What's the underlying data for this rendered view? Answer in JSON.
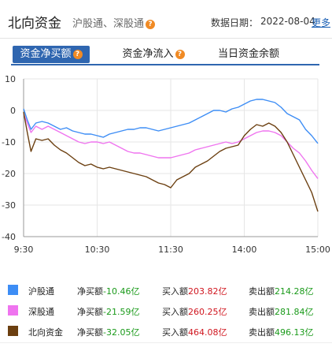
{
  "header": {
    "title": "北向资金",
    "subtitle": "沪股通、深股通",
    "date_label": "数据日期：",
    "date_value": "2022-08-04",
    "more_label": "更多"
  },
  "tabs": [
    {
      "label": "资金净买额",
      "active": true
    },
    {
      "label": "资金净流入",
      "active": false
    },
    {
      "label": "当日资金余额",
      "active": false
    }
  ],
  "colors": {
    "shanghai": "#3d8df5",
    "shenzhen": "#ef74ef",
    "north": "#6b3f10",
    "tab_active": "#2f66b0",
    "positive": "#d0161f",
    "negative": "#1a9a1a"
  },
  "legend": [
    {
      "name": "沪股通",
      "net_label": "净买额",
      "net_value": "-10.46亿",
      "buy_label": "买入额",
      "buy_value": "203.82亿",
      "sell_label": "卖出额",
      "sell_value": "214.28亿"
    },
    {
      "name": "深股通",
      "net_label": "净买额",
      "net_value": "-21.59亿",
      "buy_label": "买入额",
      "buy_value": "260.25亿",
      "sell_label": "卖出额",
      "sell_value": "281.84亿"
    },
    {
      "name": "北向资金",
      "net_label": "净买额",
      "net_value": "-32.05亿",
      "buy_label": "买入额",
      "buy_value": "464.08亿",
      "sell_label": "卖出额",
      "sell_value": "496.13亿"
    }
  ],
  "chart_data": {
    "type": "line",
    "x_ticks": [
      "9:30",
      "10:30",
      "11:30",
      "14:00",
      "15:00"
    ],
    "y_ticks": [
      10,
      0,
      -10,
      -20,
      -30,
      -40
    ],
    "ylim": [
      -40,
      10
    ],
    "x_range_minutes": [
      0,
      240
    ],
    "grid": true,
    "series": [
      {
        "name": "沪股通",
        "color_key": "shanghai",
        "points": [
          [
            0,
            0.5
          ],
          [
            3,
            -3
          ],
          [
            6,
            -6
          ],
          [
            10,
            -4
          ],
          [
            15,
            -3.5
          ],
          [
            20,
            -4
          ],
          [
            25,
            -5
          ],
          [
            30,
            -6
          ],
          [
            35,
            -5.5
          ],
          [
            40,
            -6.5
          ],
          [
            45,
            -7
          ],
          [
            50,
            -7.5
          ],
          [
            55,
            -7.5
          ],
          [
            60,
            -8
          ],
          [
            65,
            -8.5
          ],
          [
            70,
            -7.5
          ],
          [
            75,
            -7
          ],
          [
            80,
            -6.5
          ],
          [
            85,
            -6
          ],
          [
            90,
            -6
          ],
          [
            95,
            -5.5
          ],
          [
            100,
            -5.5
          ],
          [
            105,
            -6
          ],
          [
            110,
            -6.5
          ],
          [
            115,
            -6
          ],
          [
            120,
            -5.5
          ],
          [
            125,
            -5
          ],
          [
            130,
            -4.5
          ],
          [
            135,
            -4
          ],
          [
            140,
            -3
          ],
          [
            145,
            -2
          ],
          [
            150,
            -1
          ],
          [
            155,
            0
          ],
          [
            160,
            0
          ],
          [
            165,
            -0.5
          ],
          [
            170,
            0.5
          ],
          [
            175,
            1
          ],
          [
            180,
            2
          ],
          [
            185,
            3
          ],
          [
            190,
            3.5
          ],
          [
            195,
            3.5
          ],
          [
            200,
            3
          ],
          [
            205,
            2.5
          ],
          [
            210,
            1
          ],
          [
            215,
            -1
          ],
          [
            220,
            -2
          ],
          [
            225,
            -3
          ],
          [
            230,
            -6
          ],
          [
            235,
            -8
          ],
          [
            240,
            -10.46
          ]
        ]
      },
      {
        "name": "深股通",
        "color_key": "shenzhen",
        "points": [
          [
            0,
            -1
          ],
          [
            3,
            -4
          ],
          [
            6,
            -7
          ],
          [
            10,
            -5
          ],
          [
            15,
            -6
          ],
          [
            20,
            -5
          ],
          [
            25,
            -6
          ],
          [
            30,
            -7
          ],
          [
            35,
            -8
          ],
          [
            40,
            -9
          ],
          [
            45,
            -10
          ],
          [
            50,
            -10.5
          ],
          [
            55,
            -10
          ],
          [
            60,
            -10
          ],
          [
            65,
            -10.5
          ],
          [
            70,
            -10
          ],
          [
            75,
            -11
          ],
          [
            80,
            -12
          ],
          [
            85,
            -13
          ],
          [
            90,
            -13.5
          ],
          [
            95,
            -13.5
          ],
          [
            100,
            -14
          ],
          [
            105,
            -14.5
          ],
          [
            110,
            -15
          ],
          [
            115,
            -15
          ],
          [
            120,
            -15
          ],
          [
            125,
            -14.5
          ],
          [
            130,
            -14
          ],
          [
            135,
            -13.5
          ],
          [
            140,
            -12.5
          ],
          [
            145,
            -12
          ],
          [
            150,
            -11.5
          ],
          [
            155,
            -11
          ],
          [
            160,
            -10.5
          ],
          [
            165,
            -10
          ],
          [
            170,
            -10.5
          ],
          [
            175,
            -10
          ],
          [
            180,
            -9
          ],
          [
            185,
            -8
          ],
          [
            190,
            -7
          ],
          [
            195,
            -6.5
          ],
          [
            200,
            -6.5
          ],
          [
            205,
            -7
          ],
          [
            210,
            -8
          ],
          [
            215,
            -10
          ],
          [
            220,
            -12
          ],
          [
            225,
            -13.5
          ],
          [
            230,
            -16
          ],
          [
            235,
            -19
          ],
          [
            240,
            -21.59
          ]
        ]
      },
      {
        "name": "北向资金",
        "color_key": "north",
        "points": [
          [
            0,
            -0.5
          ],
          [
            3,
            -7
          ],
          [
            6,
            -13
          ],
          [
            10,
            -9
          ],
          [
            15,
            -9.5
          ],
          [
            20,
            -9
          ],
          [
            25,
            -11
          ],
          [
            30,
            -12.5
          ],
          [
            35,
            -13.5
          ],
          [
            40,
            -15
          ],
          [
            45,
            -16.5
          ],
          [
            50,
            -17.5
          ],
          [
            55,
            -17
          ],
          [
            60,
            -18
          ],
          [
            65,
            -18.5
          ],
          [
            70,
            -18
          ],
          [
            75,
            -18.5
          ],
          [
            80,
            -19
          ],
          [
            85,
            -19.5
          ],
          [
            90,
            -20
          ],
          [
            95,
            -20.5
          ],
          [
            100,
            -21
          ],
          [
            105,
            -22
          ],
          [
            110,
            -23
          ],
          [
            115,
            -23.5
          ],
          [
            120,
            -24.5
          ],
          [
            125,
            -22
          ],
          [
            130,
            -21
          ],
          [
            135,
            -20
          ],
          [
            140,
            -18
          ],
          [
            145,
            -17
          ],
          [
            150,
            -16
          ],
          [
            155,
            -14.5
          ],
          [
            160,
            -13
          ],
          [
            165,
            -12
          ],
          [
            170,
            -11.5
          ],
          [
            175,
            -11
          ],
          [
            180,
            -8
          ],
          [
            185,
            -6
          ],
          [
            190,
            -4.5
          ],
          [
            195,
            -5
          ],
          [
            200,
            -4
          ],
          [
            205,
            -5
          ],
          [
            210,
            -7
          ],
          [
            215,
            -10
          ],
          [
            220,
            -14
          ],
          [
            225,
            -18
          ],
          [
            230,
            -22
          ],
          [
            235,
            -26
          ],
          [
            240,
            -32.05
          ]
        ]
      }
    ]
  }
}
